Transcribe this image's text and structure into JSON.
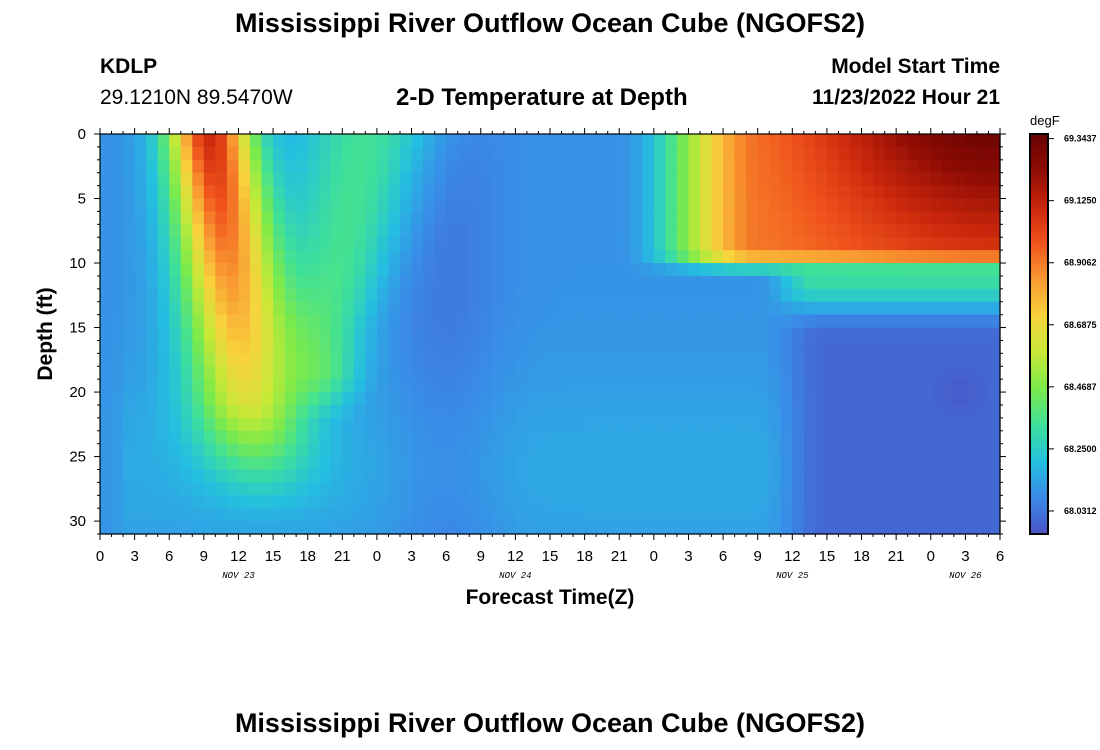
{
  "page": {
    "title": "Mississippi River Outflow Ocean Cube (NGOFS2)",
    "title_repeat": "Mississippi River Outflow Ocean Cube (NGOFS2)"
  },
  "header": {
    "station": "KDLP",
    "coords": "29.1210N  89.5470W",
    "model_start_label": "Model Start Time",
    "model_start_value": "11/23/2022 Hour 21"
  },
  "chart_data": {
    "type": "heatmap",
    "title": "2-D Temperature at Depth",
    "xlabel": "Forecast Time(Z)",
    "ylabel": "Depth (ft)",
    "units": "degF",
    "x_tick_labels": [
      "0",
      "3",
      "6",
      "9",
      "12",
      "15",
      "18",
      "21",
      "0",
      "3",
      "6",
      "9",
      "12",
      "15",
      "18",
      "21",
      "0",
      "3",
      "6",
      "9",
      "12",
      "15",
      "18",
      "21",
      "0",
      "3",
      "6"
    ],
    "x_range_hours": [
      0,
      78
    ],
    "day_labels": [
      {
        "label": "NOV 23",
        "hour": 12
      },
      {
        "label": "NOV 24",
        "hour": 36
      },
      {
        "label": "NOV 25",
        "hour": 60
      },
      {
        "label": "NOV 26",
        "hour": 75
      }
    ],
    "y_ticks": [
      "0",
      "5",
      "10",
      "15",
      "20",
      "25",
      "30"
    ],
    "y_range_ft": [
      0,
      31
    ],
    "y_reversed": true,
    "colorbar_ticks": [
      "69.3437",
      "69.1250",
      "68.9062",
      "68.6875",
      "68.4687",
      "68.2500",
      "68.0312"
    ],
    "colorbar_range": [
      67.95,
      69.36
    ],
    "colorscale": [
      "#4a52c6",
      "#3a8ae8",
      "#24c0e0",
      "#3fe09a",
      "#7cea4a",
      "#c8e838",
      "#f8d23c",
      "#f99a32",
      "#f0541c",
      "#c8260c",
      "#8e0c04",
      "#680202"
    ],
    "features": {
      "early_warm_core": {
        "hour": 9.5,
        "min_temp": 68.5,
        "max_temp": 69.1,
        "depth_top": 0,
        "depth_bottom": 24
      },
      "mid_cool_band": {
        "hour_start": 26,
        "hour_end": 34,
        "temp": 68.1
      },
      "second_warm_plume": {
        "hour": 19.5,
        "depth_bottom": 21,
        "temp": 68.35
      },
      "late_surface_warm_layer": {
        "hour_start": 47,
        "depth_bottom": 10.5,
        "max_temp": 69.34
      },
      "late_cold_bottom": {
        "hour_start": 62,
        "depth_top": 15,
        "temp": 68.0
      },
      "cold_spot": {
        "hour": 74.5,
        "depth": 20,
        "temp": 67.95
      }
    }
  }
}
